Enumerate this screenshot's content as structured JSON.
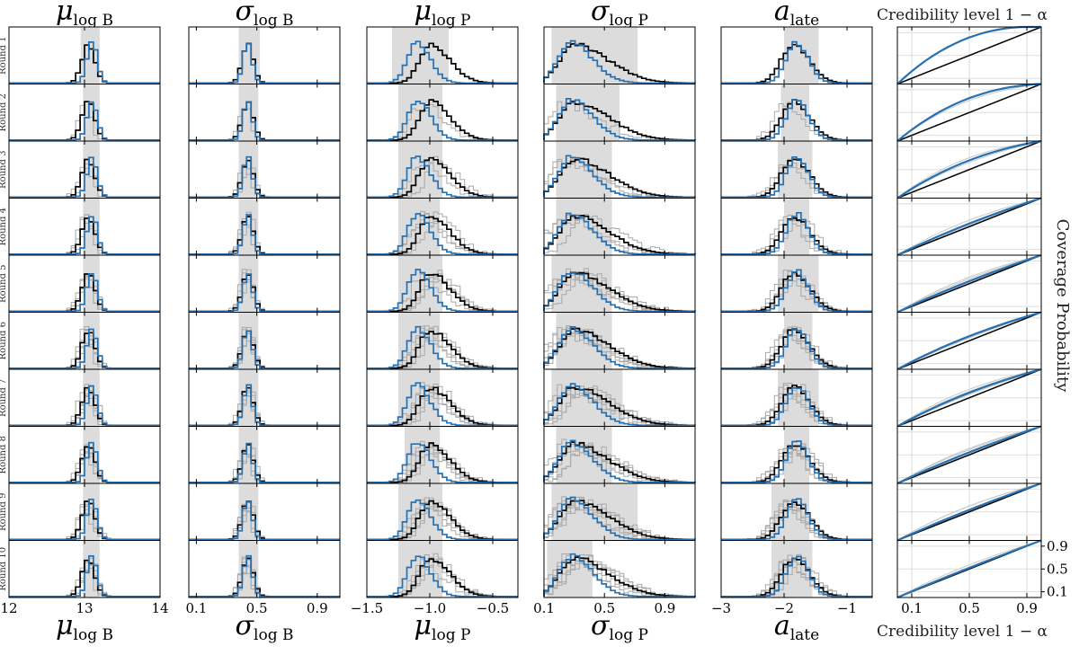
{
  "chart_data": {
    "type": "histogram-grid",
    "rounds": [
      "Round 1",
      "Round 2",
      "Round 3",
      "Round 4",
      "Round 5",
      "Round 6",
      "Round 7",
      "Round 8",
      "Round 9",
      "Round 10"
    ],
    "parameters": [
      {
        "id": "mu_logB",
        "title_main": "μ",
        "title_sub": "log B",
        "xlim": [
          12,
          14
        ],
        "ticks": [
          12,
          13,
          14
        ],
        "tick_labels": [
          "12",
          "13",
          "14"
        ],
        "mode_black": 13.05,
        "mode_blue": 13.1,
        "width": 0.08,
        "skew": 0.0,
        "band": [
          [
            12.95,
            13.2
          ],
          [
            12.98,
            13.2
          ],
          [
            12.98,
            13.2
          ],
          [
            12.98,
            13.2
          ],
          [
            12.98,
            13.2
          ],
          [
            12.98,
            13.2
          ],
          [
            12.98,
            13.2
          ],
          [
            12.98,
            13.2
          ],
          [
            12.98,
            13.2
          ],
          [
            12.98,
            13.2
          ]
        ]
      },
      {
        "id": "sigma_logB",
        "title_main": "σ",
        "title_sub": "log B",
        "xlim": [
          0.05,
          1.05
        ],
        "ticks": [
          0.1,
          0.5,
          0.9
        ],
        "tick_labels": [
          "0.1",
          "0.5",
          "0.9"
        ],
        "mode_black": 0.44,
        "mode_blue": 0.44,
        "width": 0.035,
        "skew": 0.0,
        "band": [
          [
            0.38,
            0.52
          ],
          [
            0.38,
            0.51
          ],
          [
            0.38,
            0.51
          ],
          [
            0.38,
            0.51
          ],
          [
            0.38,
            0.51
          ],
          [
            0.38,
            0.51
          ],
          [
            0.38,
            0.51
          ],
          [
            0.38,
            0.51
          ],
          [
            0.38,
            0.51
          ],
          [
            0.38,
            0.51
          ]
        ]
      },
      {
        "id": "mu_logP",
        "title_main": "μ",
        "title_sub": "log P",
        "xlim": [
          -1.5,
          -0.3
        ],
        "ticks": [
          -1.5,
          -1.0,
          -0.5
        ],
        "tick_labels": [
          "−1.5",
          "−1.0",
          "−0.5"
        ],
        "mode_black": -1.0,
        "mode_blue": -1.1,
        "width": 0.1,
        "skew": 0.5,
        "band": [
          [
            -1.3,
            -0.85
          ],
          [
            -1.25,
            -0.9
          ],
          [
            -1.25,
            -0.9
          ],
          [
            -1.25,
            -0.92
          ],
          [
            -1.25,
            -0.9
          ],
          [
            -1.25,
            -0.92
          ],
          [
            -1.25,
            -0.92
          ],
          [
            -1.2,
            -0.92
          ],
          [
            -1.25,
            -0.9
          ],
          [
            -1.25,
            -0.9
          ]
        ]
      },
      {
        "id": "sigma_logP",
        "title_main": "σ",
        "title_sub": "log P",
        "xlim": [
          0.1,
          1.1
        ],
        "ticks": [
          0.1,
          0.5,
          0.9
        ],
        "tick_labels": [
          "0.1",
          "0.5",
          "0.9"
        ],
        "mode_black": 0.3,
        "mode_blue": 0.28,
        "width": 0.12,
        "skew": 0.8,
        "band": [
          [
            0.15,
            0.72
          ],
          [
            0.18,
            0.6
          ],
          [
            0.18,
            0.55
          ],
          [
            0.18,
            0.55
          ],
          [
            0.15,
            0.55
          ],
          [
            0.18,
            0.55
          ],
          [
            0.15,
            0.62
          ],
          [
            0.18,
            0.55
          ],
          [
            0.15,
            0.72
          ],
          [
            0.12,
            0.42
          ]
        ]
      },
      {
        "id": "a_late",
        "title_main": "a",
        "title_sub": "late",
        "xlim": [
          -3,
          -0.6
        ],
        "ticks": [
          -3,
          -2,
          -1
        ],
        "tick_labels": [
          "−3",
          "−2",
          "−1"
        ],
        "mode_black": -1.85,
        "mode_blue": -1.8,
        "width": 0.2,
        "skew": 0.2,
        "band": [
          [
            -2.0,
            -1.45
          ],
          [
            -2.05,
            -1.6
          ],
          [
            -2.1,
            -1.55
          ],
          [
            -2.0,
            -1.6
          ],
          [
            -2.1,
            -1.45
          ],
          [
            -2.0,
            -1.55
          ],
          [
            -2.1,
            -1.45
          ],
          [
            -2.0,
            -1.6
          ],
          [
            -2.2,
            -1.6
          ],
          [
            -2.2,
            -1.55
          ]
        ]
      }
    ],
    "coverage": {
      "title_top": "Credibility level 1 − α",
      "title_bottom": "Credibility level 1 − α",
      "side_label": "Coverage Probability",
      "xticks": [
        0.1,
        0.5,
        0.9
      ],
      "xtick_labels": [
        "0.1",
        "0.5",
        "0.9"
      ],
      "yticks": [
        0.9,
        0.5,
        0.1
      ],
      "ytick_labels": [
        "0.9",
        "0.5",
        "0.1"
      ],
      "excess": [
        0.35,
        0.28,
        0.18,
        0.06,
        0.05,
        0.09,
        0.1,
        0.05,
        0.04,
        0.02
      ]
    },
    "colors": {
      "blue": "#2671b2",
      "black": "#000000",
      "gray": "#a8a8a8",
      "band": "#dcdcdc"
    }
  }
}
